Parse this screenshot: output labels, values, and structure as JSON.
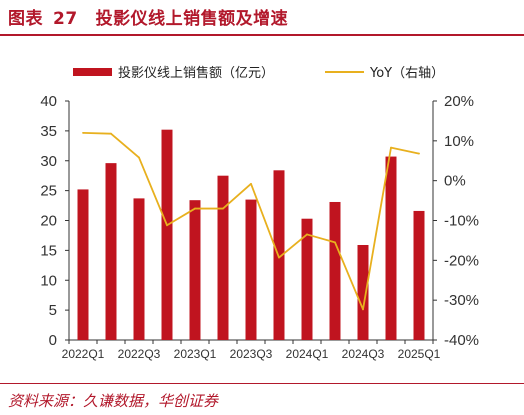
{
  "header": {
    "figure_label": "图表",
    "figure_number": "27",
    "title": "投影仪线上销售额及增速"
  },
  "source": "资料来源：久谦数据，华创证券",
  "chart_data": {
    "type": "bar",
    "categories": [
      "2022Q1",
      "2022Q2",
      "2022Q3",
      "2022Q4",
      "2023Q1",
      "2023Q2",
      "2023Q3",
      "2023Q4",
      "2024Q1",
      "2024Q2",
      "2024Q3",
      "2024Q4",
      "2025Q1"
    ],
    "x_tick_labels": [
      "2022Q1",
      "2022Q3",
      "2023Q1",
      "2023Q3",
      "2024Q1",
      "2024Q3",
      "2025Q1"
    ],
    "series": [
      {
        "name": "投影仪线上销售额（亿元）",
        "type": "bar",
        "axis": "left",
        "color": "#c0141f",
        "values": [
          25.2,
          29.6,
          23.7,
          35.2,
          23.4,
          27.5,
          23.5,
          28.4,
          20.3,
          23.1,
          15.9,
          30.7,
          21.6
        ]
      },
      {
        "name": "YoY（右轴）",
        "type": "line",
        "axis": "right",
        "color": "#e8b01e",
        "values": [
          12.0,
          11.8,
          5.8,
          -11.2,
          -7.0,
          -7.0,
          -0.8,
          -19.3,
          -13.5,
          -15.5,
          -32.3,
          8.3,
          6.8
        ]
      }
    ],
    "left_axis": {
      "ylim": [
        0,
        40
      ],
      "ticks": [
        "0",
        "5",
        "10",
        "15",
        "20",
        "25",
        "30",
        "35",
        "40"
      ]
    },
    "right_axis": {
      "ylim": [
        -40,
        20
      ],
      "ticks": [
        "-40%",
        "-30%",
        "-20%",
        "-10%",
        "0%",
        "10%",
        "20%"
      ]
    },
    "legend_position": "top-center",
    "grid": false
  }
}
